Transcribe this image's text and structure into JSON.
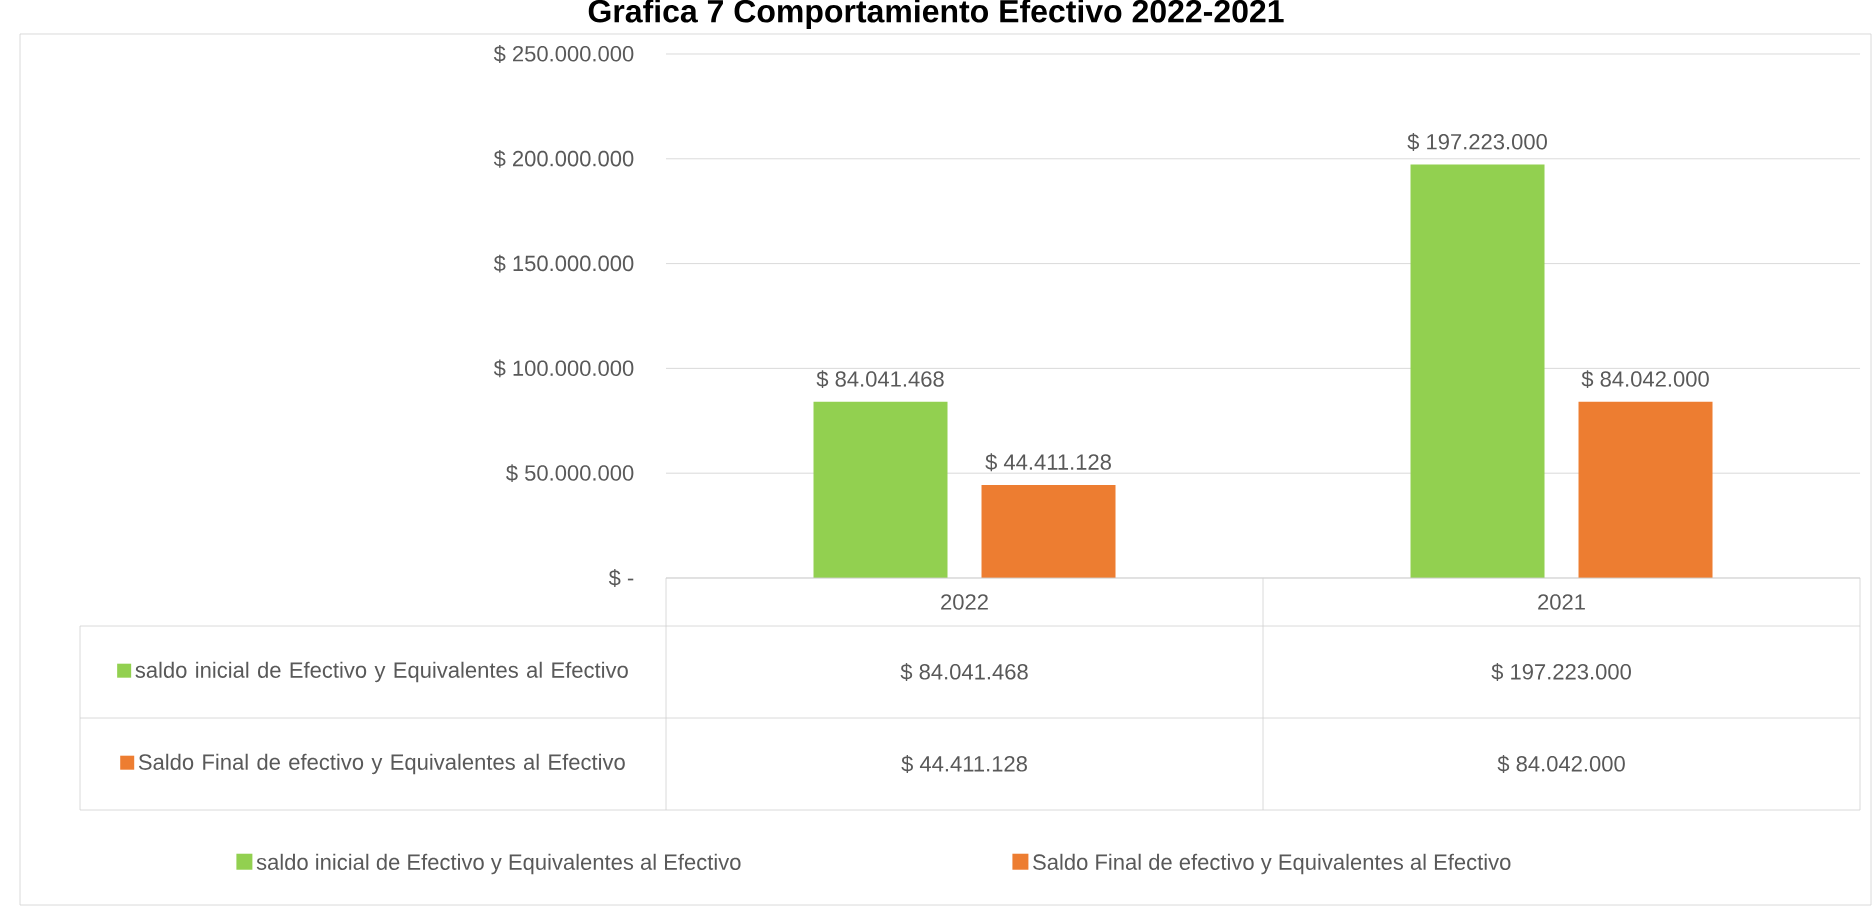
{
  "chart_data": {
    "type": "bar",
    "title": "Grafica 7 Comportamiento Efectivo 2022-2021",
    "categories": [
      "2022",
      "2021"
    ],
    "series": [
      {
        "name": "saldo inicial de Efectivo y Equivalentes al Efectivo",
        "color": "#92d050",
        "values": [
          84041468,
          197223000
        ],
        "value_labels": [
          "$ 84.041.468",
          "$ 197.223.000"
        ]
      },
      {
        "name": "Saldo Final de efectivo y Equivalentes al Efectivo",
        "color": "#ed7d31",
        "values": [
          44411128,
          84042000
        ],
        "value_labels": [
          "$ 44.411.128",
          "$ 84.042.000"
        ]
      }
    ],
    "ylim": [
      0,
      250000000
    ],
    "yticks": [
      {
        "value": 0,
        "label": "$ -"
      },
      {
        "value": 50000000,
        "label": "$ 50.000.000"
      },
      {
        "value": 100000000,
        "label": "$ 100.000.000"
      },
      {
        "value": 150000000,
        "label": "$ 150.000.000"
      },
      {
        "value": 200000000,
        "label": "$ 200.000.000"
      },
      {
        "value": 250000000,
        "label": "$ 250.000.000"
      }
    ],
    "grid": "y",
    "legend": "bottom"
  }
}
